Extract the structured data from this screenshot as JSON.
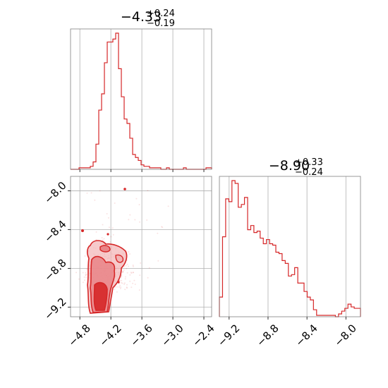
{
  "chart_data": {
    "type": "corner",
    "color": "#d62728",
    "titles": {
      "param1": {
        "main": "−4.33",
        "upper": "+0.24",
        "lower": "−0.19"
      },
      "param2": {
        "main": "−8.90",
        "upper": "+0.33",
        "lower": "−0.24"
      }
    },
    "param1_range": [
      -4.98,
      -2.25
    ],
    "param2_range": [
      -9.3,
      -7.85
    ],
    "param1_ticks": [
      {
        "value": -4.8,
        "label": "−4.8"
      },
      {
        "value": -4.2,
        "label": "−4.2"
      },
      {
        "value": -3.6,
        "label": "−3.6"
      },
      {
        "value": -3.0,
        "label": "−3.0"
      },
      {
        "value": -2.4,
        "label": "−2.4"
      }
    ],
    "param2_ticks": [
      {
        "value": -8.0,
        "label": "−8.0"
      },
      {
        "value": -8.4,
        "label": "−8.4"
      },
      {
        "value": -8.8,
        "label": "−8.8"
      },
      {
        "value": -9.2,
        "label": "−9.2"
      }
    ],
    "param2_xticks": [
      {
        "value": -9.2,
        "label": "−9.2"
      },
      {
        "value": -8.8,
        "label": "−8.8"
      },
      {
        "value": -8.4,
        "label": "−8.4"
      },
      {
        "value": -8.0,
        "label": "−8.0"
      }
    ],
    "hist1": [
      0,
      0,
      0,
      1,
      1,
      1,
      1,
      2,
      5,
      17,
      40,
      51,
      72,
      86,
      86,
      88,
      92,
      68,
      49,
      34,
      31,
      21,
      10,
      8,
      6,
      3,
      2,
      2,
      1,
      1,
      1,
      1,
      0,
      0,
      1,
      0,
      0,
      0,
      0,
      0,
      1,
      0,
      0,
      0,
      0,
      0,
      0,
      0,
      1,
      1
    ],
    "hist2": [
      14,
      57,
      84,
      82,
      97,
      95,
      78,
      80,
      85,
      62,
      65,
      60,
      61,
      56,
      52,
      55,
      52,
      51,
      46,
      45,
      40,
      38,
      29,
      30,
      35,
      24,
      24,
      18,
      14,
      12,
      5,
      1,
      1,
      1,
      1,
      1,
      1,
      0,
      2,
      4,
      6,
      9,
      7,
      6,
      6
    ]
  }
}
